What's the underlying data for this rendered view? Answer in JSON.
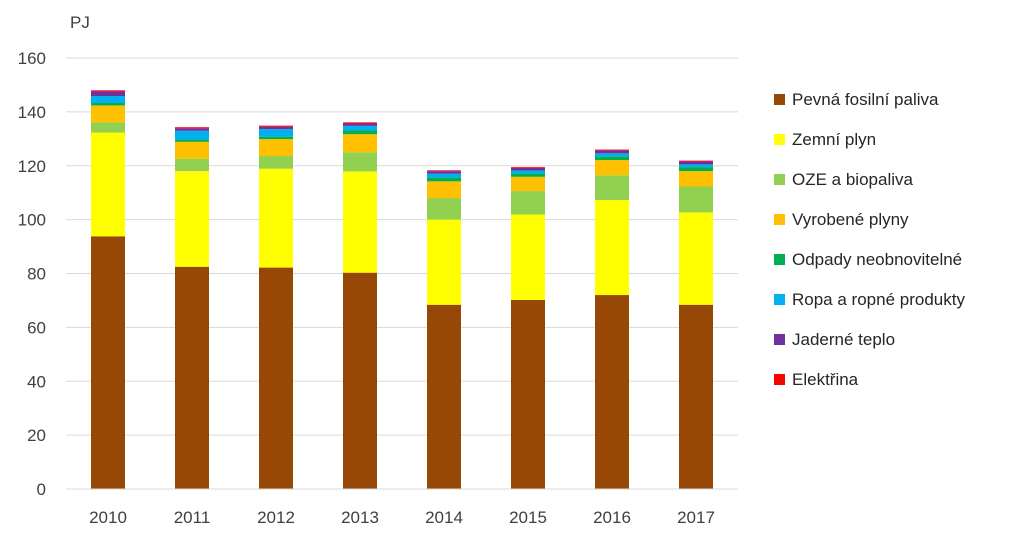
{
  "chart_data": {
    "type": "bar",
    "stacked": true,
    "unit_label": "PJ",
    "categories": [
      "2010",
      "2011",
      "2012",
      "2013",
      "2014",
      "2015",
      "2016",
      "2017"
    ],
    "ylim": [
      0,
      160
    ],
    "yticks": [
      "0",
      "20",
      "40",
      "60",
      "80",
      "100",
      "120",
      "140",
      "160"
    ],
    "grid": true,
    "legend_position": "right",
    "series": [
      {
        "name": "Pevná fosilní paliva",
        "color": "#974706",
        "values": [
          93.8,
          82.5,
          82.2,
          80.3,
          68.4,
          70.2,
          72.0,
          68.4
        ]
      },
      {
        "name": "Zemní plyn",
        "color": "#ffff00",
        "values": [
          38.5,
          35.5,
          36.7,
          37.6,
          31.6,
          31.7,
          35.3,
          34.3
        ]
      },
      {
        "name": "OZE a biopaliva",
        "color": "#92d050",
        "values": [
          3.8,
          4.6,
          4.7,
          7.1,
          8.0,
          8.7,
          9.2,
          9.6
        ]
      },
      {
        "name": "Vyrobené plyny",
        "color": "#ffc000",
        "values": [
          6.3,
          6.3,
          6.3,
          6.7,
          6.2,
          5.3,
          5.6,
          5.7
        ]
      },
      {
        "name": "Odpady neobnovitelné",
        "color": "#00b050",
        "values": [
          0.9,
          0.9,
          0.9,
          1.4,
          1.4,
          1.2,
          1.4,
          1.5
        ]
      },
      {
        "name": "Ropa a ropné produkty",
        "color": "#00b0f0",
        "values": [
          2.6,
          3.2,
          2.8,
          1.7,
          1.5,
          1.1,
          1.1,
          1.0
        ]
      },
      {
        "name": "Jaderné teplo",
        "color": "#7030a0",
        "values": [
          1.7,
          0.9,
          0.9,
          0.9,
          0.9,
          1.0,
          1.1,
          1.1
        ]
      },
      {
        "name": "Elektřina",
        "color": "#ff0000",
        "values": [
          0.4,
          0.4,
          0.4,
          0.4,
          0.3,
          0.3,
          0.3,
          0.3
        ]
      }
    ]
  }
}
